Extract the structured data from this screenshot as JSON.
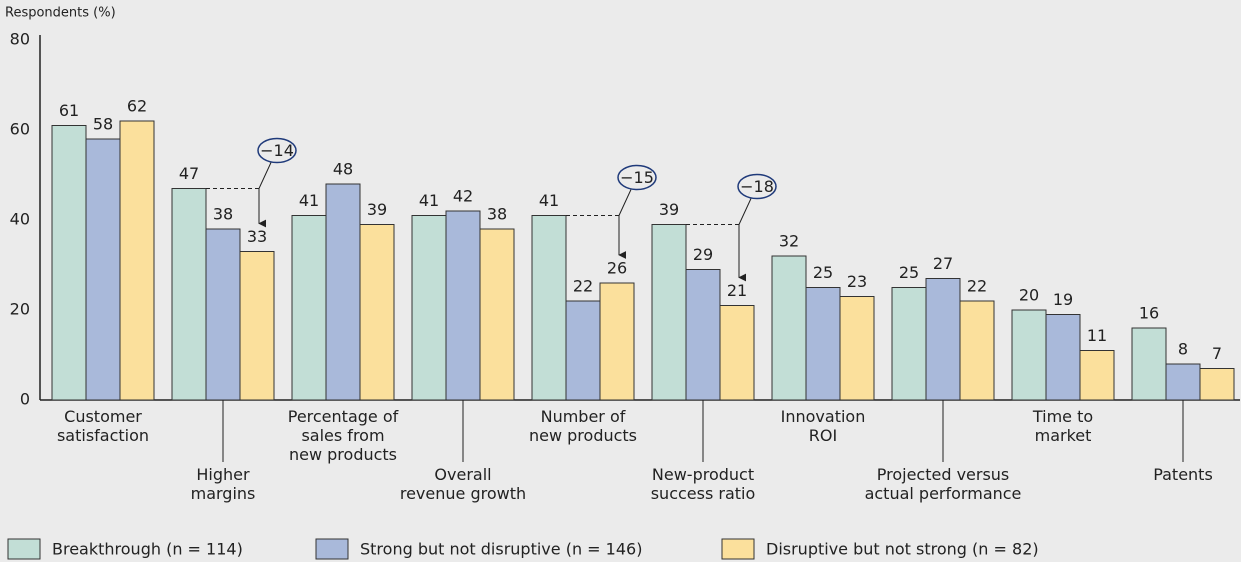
{
  "chart_data": {
    "type": "bar",
    "y_label": "Respondents (%)",
    "categories": [
      "Customer\nsatisfaction",
      "Higher\nmargins",
      "Percentage of\nsales from\nnew products",
      "Overall\nrevenue growth",
      "Number of\nnew products",
      "New-product\nsuccess ratio",
      "Innovation\nROI",
      "Projected versus\nactual performance",
      "Time to\nmarket",
      "Patents"
    ],
    "series": [
      {
        "name": "Breakthrough (n = 114)",
        "color": "#c2ded6",
        "values": [
          61,
          47,
          41,
          41,
          41,
          39,
          32,
          25,
          20,
          16
        ]
      },
      {
        "name": "Strong but not disruptive (n = 146)",
        "color": "#a9b9da",
        "values": [
          58,
          38,
          48,
          42,
          22,
          29,
          25,
          27,
          19,
          8
        ]
      },
      {
        "name": "Disruptive but not strong (n = 82)",
        "color": "#fbe09c",
        "values": [
          62,
          33,
          39,
          38,
          26,
          21,
          23,
          22,
          11,
          7
        ]
      }
    ],
    "annotations": [
      "−14",
      "−15",
      "−18"
    ],
    "ylim": [
      0,
      80
    ],
    "yticks": [
      0,
      20,
      40,
      60,
      80
    ]
  }
}
